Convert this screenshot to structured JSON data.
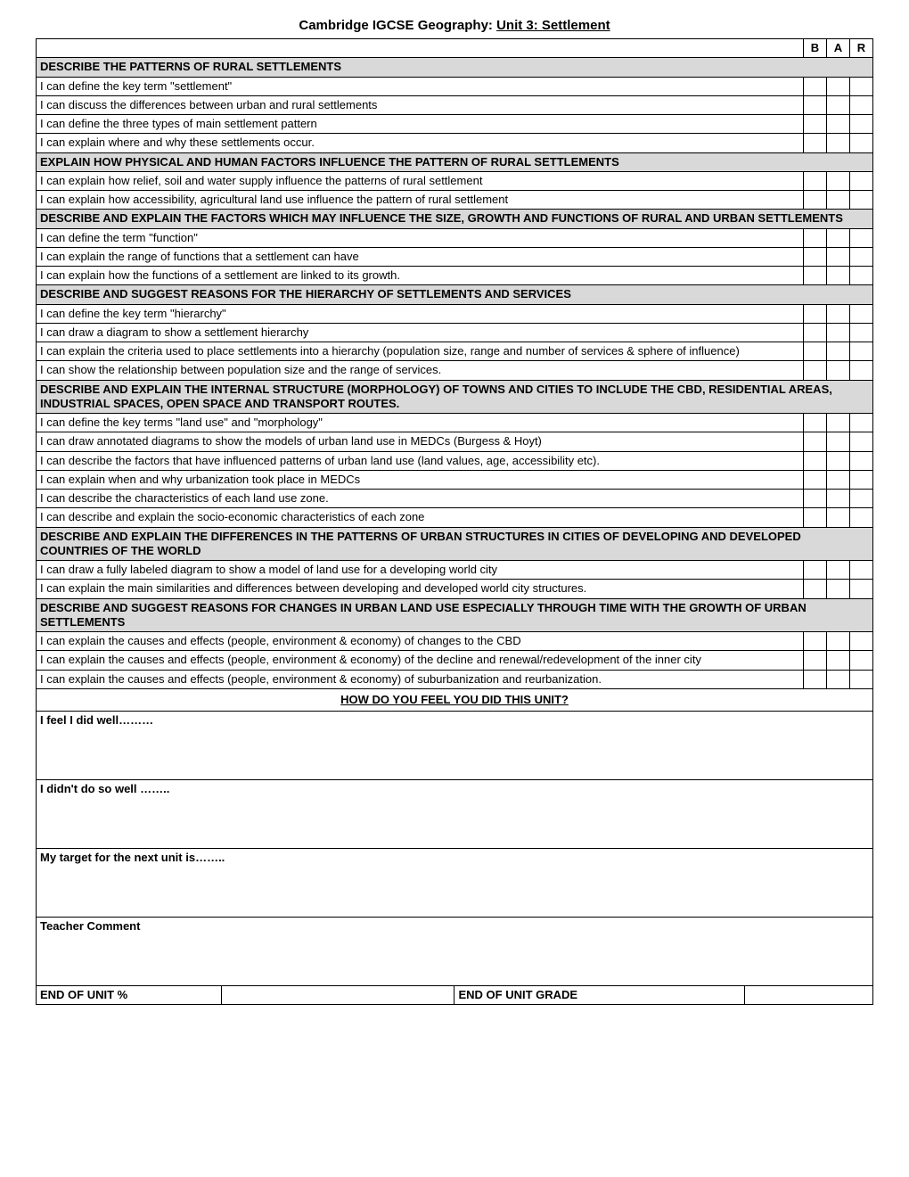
{
  "title_prefix": "Cambridge IGCSE Geography: ",
  "title_unit": "Unit 3: Settlement",
  "bar_headers": [
    "B",
    "A",
    "R"
  ],
  "rows": [
    {
      "type": "section",
      "text": "DESCRIBE THE PATTERNS OF RURAL SETTLEMENTS"
    },
    {
      "type": "item",
      "text": "I can define the key term \"settlement\""
    },
    {
      "type": "item",
      "text": "I can discuss the differences between urban and rural settlements"
    },
    {
      "type": "item",
      "text": "I can define the three types of main settlement pattern"
    },
    {
      "type": "item",
      "text": "I can explain where and why these settlements occur."
    },
    {
      "type": "section",
      "text": "EXPLAIN HOW PHYSICAL AND HUMAN FACTORS INFLUENCE THE PATTERN OF RURAL SETTLEMENTS"
    },
    {
      "type": "item",
      "text": "I can explain how relief, soil and water supply influence the patterns of rural settlement"
    },
    {
      "type": "item",
      "text": "I can explain how accessibility, agricultural land use influence the pattern of rural settlement"
    },
    {
      "type": "section",
      "text": "DESCRIBE AND EXPLAIN THE FACTORS WHICH MAY INFLUENCE THE SIZE, GROWTH AND FUNCTIONS OF RURAL AND URBAN SETTLEMENTS"
    },
    {
      "type": "item",
      "text": "I can define the term \"function\""
    },
    {
      "type": "item",
      "text": "I can explain the range of functions that a settlement can have"
    },
    {
      "type": "item",
      "text": "I can explain how the functions of a settlement are linked to its growth."
    },
    {
      "type": "section",
      "text": "DESCRIBE AND SUGGEST REASONS FOR THE HIERARCHY OF SETTLEMENTS AND SERVICES"
    },
    {
      "type": "item",
      "text": "I can define the key term \"hierarchy\""
    },
    {
      "type": "item",
      "text": "I can draw a diagram to show a settlement hierarchy"
    },
    {
      "type": "item",
      "text": "I can explain the criteria used to place settlements into a hierarchy (population size, range and number of services & sphere of influence)"
    },
    {
      "type": "item",
      "text": "I can show the relationship between population size and the range of services."
    },
    {
      "type": "section",
      "text": "DESCRIBE AND EXPLAIN THE INTERNAL STRUCTURE (MORPHOLOGY) OF TOWNS AND CITIES TO INCLUDE THE CBD, RESIDENTIAL AREAS, INDUSTRIAL SPACES, OPEN SPACE AND TRANSPORT ROUTES."
    },
    {
      "type": "item",
      "text": "I can define the key terms \"land use\" and \"morphology\""
    },
    {
      "type": "item",
      "text": "I can draw annotated diagrams to show the models of urban land use in MEDCs (Burgess & Hoyt)"
    },
    {
      "type": "item",
      "text": "I can describe the factors that have influenced patterns of urban land use (land values, age, accessibility etc)."
    },
    {
      "type": "item",
      "text": "I can explain when and why urbanization took place in MEDCs"
    },
    {
      "type": "item",
      "text": "I can describe the characteristics of each land use zone."
    },
    {
      "type": "item",
      "text": "I can describe and explain the socio-economic characteristics of each zone"
    },
    {
      "type": "section",
      "text": "DESCRIBE AND EXPLAIN THE DIFFERENCES IN THE PATTERNS OF URBAN STRUCTURES IN CITIES OF DEVELOPING AND DEVELOPED COUNTRIES OF THE WORLD"
    },
    {
      "type": "item",
      "text": "I can draw a fully labeled diagram to show a model of land use for a developing world city"
    },
    {
      "type": "item",
      "text": "I can explain the main similarities and differences between developing and developed world city structures."
    },
    {
      "type": "section",
      "text": "DESCRIBE AND SUGGEST REASONS FOR CHANGES IN URBAN LAND USE ESPECIALLY THROUGH TIME WITH THE GROWTH OF URBAN SETTLEMENTS"
    },
    {
      "type": "item",
      "text": "I can explain the causes and effects (people, environment & economy) of changes to the CBD"
    },
    {
      "type": "item",
      "text": "I can explain the causes and effects (people, environment & economy) of the decline and renewal/redevelopment of the inner city"
    },
    {
      "type": "item",
      "text": "I can explain the causes and effects (people, environment & economy) of suburbanization and reurbanization."
    }
  ],
  "subheading": "HOW DO YOU FEEL YOU DID THIS UNIT?",
  "reflections": [
    "I feel I did well………",
    "I didn't do so well ……..",
    "My target for the next unit is……..",
    "Teacher Comment"
  ],
  "footer": {
    "percent_label": "END OF UNIT %",
    "grade_label": "END OF UNIT GRADE"
  }
}
